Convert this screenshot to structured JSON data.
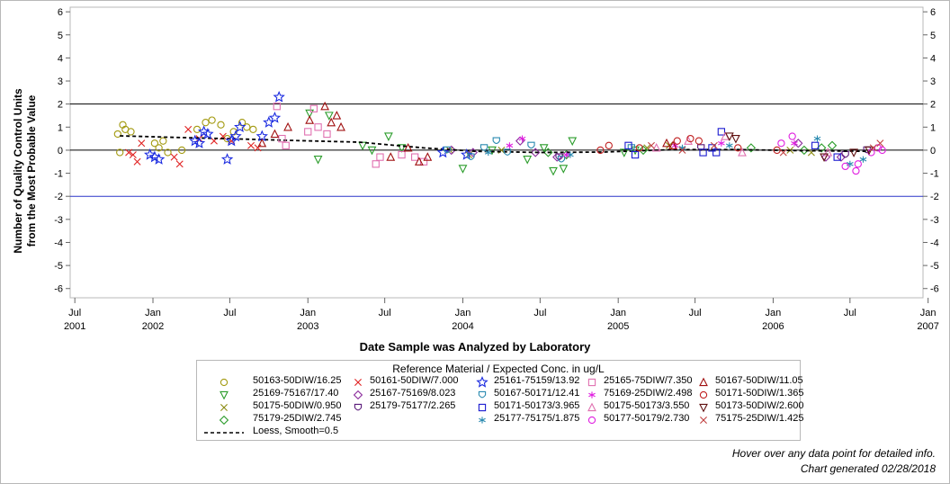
{
  "footnotes": {
    "hover": "Hover over any data point for detailed info.",
    "generated": "Chart generated 02/28/2018"
  },
  "chart_data": {
    "type": "scatter",
    "title": "",
    "ylabel_line1": "Number of Quality Control Units",
    "ylabel_line2": "from the Most Probable Value",
    "xlabel": "Date Sample was Analyzed by Laboratory",
    "ylim": [
      -6.4,
      6.2
    ],
    "xlim": [
      "2001-06-20",
      "2006-12-20"
    ],
    "yticks": [
      6,
      5,
      4,
      3,
      2,
      1,
      0,
      -1,
      -2,
      -3,
      -4,
      -5,
      -6
    ],
    "xticks": [
      {
        "date": "2001-07-01",
        "label1": "Jul",
        "label2": "2001"
      },
      {
        "date": "2002-01-01",
        "label1": "Jan",
        "label2": "2002"
      },
      {
        "date": "2002-07-01",
        "label1": "Jul",
        "label2": ""
      },
      {
        "date": "2003-01-01",
        "label1": "Jan",
        "label2": "2003"
      },
      {
        "date": "2003-07-01",
        "label1": "Jul",
        "label2": ""
      },
      {
        "date": "2004-01-01",
        "label1": "Jan",
        "label2": "2004"
      },
      {
        "date": "2004-07-01",
        "label1": "Jul",
        "label2": ""
      },
      {
        "date": "2005-01-01",
        "label1": "Jan",
        "label2": "2005"
      },
      {
        "date": "2005-07-01",
        "label1": "Jul",
        "label2": ""
      },
      {
        "date": "2006-01-01",
        "label1": "Jan",
        "label2": "2006"
      },
      {
        "date": "2006-07-01",
        "label1": "Jul",
        "label2": ""
      },
      {
        "date": "2007-01-01",
        "label1": "Jan",
        "label2": "2007"
      }
    ],
    "reference_lines": [
      {
        "y": 2,
        "color": "#000000"
      },
      {
        "y": 0,
        "color": "#000000"
      },
      {
        "y": -2,
        "color": "#2a35c8"
      }
    ],
    "legend": {
      "title": "Reference Material / Expected Conc. in ug/L",
      "placement": "bottom-center"
    },
    "series": [
      {
        "name": "50163-50DIW/16.25",
        "marker": "circle",
        "color": "#a39a10",
        "points": [
          [
            "2001-10-10",
            0.7
          ],
          [
            "2001-10-15",
            -0.1
          ],
          [
            "2001-10-22",
            1.1
          ],
          [
            "2001-10-28",
            0.9
          ],
          [
            "2001-11-10",
            0.8
          ],
          [
            "2002-01-05",
            0.3
          ],
          [
            "2002-01-15",
            0.1
          ],
          [
            "2002-01-25",
            0.4
          ],
          [
            "2002-02-05",
            -0.1
          ],
          [
            "2002-03-10",
            0.0
          ],
          [
            "2002-04-15",
            0.9
          ],
          [
            "2002-05-05",
            1.2
          ],
          [
            "2002-05-20",
            1.3
          ],
          [
            "2002-06-10",
            1.1
          ],
          [
            "2002-06-25",
            0.5
          ],
          [
            "2002-07-10",
            0.8
          ],
          [
            "2002-07-30",
            1.2
          ],
          [
            "2002-08-10",
            1.0
          ],
          [
            "2002-08-25",
            0.9
          ]
        ]
      },
      {
        "name": "25169-75167/17.40",
        "marker": "triangle-down",
        "color": "#2a9c2a",
        "points": [
          [
            "2003-01-05",
            1.6
          ],
          [
            "2003-01-25",
            -0.4
          ],
          [
            "2003-02-20",
            1.5
          ],
          [
            "2003-05-10",
            0.2
          ],
          [
            "2003-06-01",
            0.0
          ],
          [
            "2003-07-10",
            0.6
          ],
          [
            "2003-08-10",
            0.1
          ],
          [
            "2004-01-01",
            -0.8
          ],
          [
            "2004-03-10",
            0.0
          ],
          [
            "2004-06-01",
            -0.4
          ],
          [
            "2004-07-10",
            0.1
          ],
          [
            "2004-08-01",
            -0.9
          ],
          [
            "2004-08-25",
            -0.8
          ],
          [
            "2004-09-15",
            0.4
          ],
          [
            "2005-01-15",
            -0.1
          ],
          [
            "2005-02-10",
            0.0
          ]
        ]
      },
      {
        "name": "50175-50DIW/0.950",
        "marker": "x",
        "color": "#8a8a10",
        "points": [
          [
            "2003-12-01",
            0.0
          ],
          [
            "2004-01-15",
            -0.2
          ],
          [
            "2004-04-01",
            0.0
          ],
          [
            "2005-03-10",
            0.1
          ],
          [
            "2005-05-01",
            0.2
          ],
          [
            "2006-02-10",
            0.0
          ],
          [
            "2006-04-01",
            -0.1
          ]
        ]
      },
      {
        "name": "75179-25DIW/2.745",
        "marker": "diamond",
        "color": "#2a9c2a",
        "points": [
          [
            "2004-07-20",
            -0.1
          ],
          [
            "2004-09-01",
            -0.2
          ],
          [
            "2005-03-01",
            0.0
          ],
          [
            "2005-11-10",
            0.1
          ],
          [
            "2006-03-15",
            0.0
          ],
          [
            "2006-04-25",
            0.1
          ],
          [
            "2006-05-20",
            0.2
          ]
        ]
      },
      {
        "name": "50161-50DIW/7.000",
        "marker": "x",
        "color": "#e02020",
        "points": [
          [
            "2001-11-05",
            -0.1
          ],
          [
            "2001-11-15",
            -0.2
          ],
          [
            "2001-11-25",
            -0.5
          ],
          [
            "2001-12-05",
            0.3
          ],
          [
            "2002-02-20",
            -0.3
          ],
          [
            "2002-03-05",
            -0.6
          ],
          [
            "2002-03-25",
            0.9
          ],
          [
            "2002-04-20",
            0.5
          ],
          [
            "2002-05-25",
            0.4
          ],
          [
            "2002-06-15",
            0.6
          ],
          [
            "2002-07-05",
            0.4
          ],
          [
            "2002-08-20",
            0.2
          ],
          [
            "2002-09-05",
            0.1
          ]
        ]
      },
      {
        "name": "25167-75169/8.023",
        "marker": "diamond",
        "color": "#8a2a9c",
        "points": [
          [
            "2003-12-05",
            0.0
          ],
          [
            "2004-01-25",
            -0.1
          ],
          [
            "2004-05-15",
            0.4
          ],
          [
            "2004-06-20",
            -0.1
          ],
          [
            "2004-08-10",
            -0.3
          ],
          [
            "2006-03-01",
            0.3
          ],
          [
            "2006-05-05",
            -0.3
          ],
          [
            "2006-06-10",
            -0.3
          ]
        ]
      },
      {
        "name": "25179-75177/2.265",
        "marker": "shield",
        "color": "#5a1a7a",
        "points": [
          [
            "2004-08-15",
            -0.3
          ],
          [
            "2005-07-15",
            0.1
          ],
          [
            "2006-06-20",
            -0.2
          ],
          [
            "2006-08-10",
            0.0
          ]
        ]
      },
      {
        "name": "Loess, Smooth=0.5",
        "marker": "none",
        "line": "dashed",
        "color": "#000000",
        "points": [
          [
            "2001-10-15",
            0.62
          ],
          [
            "2002-03-01",
            0.55
          ],
          [
            "2002-08-01",
            0.48
          ],
          [
            "2002-12-01",
            0.42
          ],
          [
            "2003-05-01",
            0.35
          ],
          [
            "2003-10-01",
            0.1
          ],
          [
            "2004-02-01",
            -0.05
          ],
          [
            "2004-07-01",
            -0.1
          ],
          [
            "2004-12-01",
            -0.08
          ],
          [
            "2005-05-01",
            0.02
          ],
          [
            "2005-10-01",
            0.03
          ],
          [
            "2006-03-01",
            -0.02
          ],
          [
            "2006-08-15",
            -0.05
          ]
        ]
      },
      {
        "name": "25161-75159/13.92",
        "marker": "star",
        "color": "#1a2ae0",
        "points": [
          [
            "2001-12-25",
            -0.2
          ],
          [
            "2002-01-05",
            -0.3
          ],
          [
            "2002-01-15",
            -0.4
          ],
          [
            "2002-04-10",
            0.4
          ],
          [
            "2002-04-20",
            0.3
          ],
          [
            "2002-05-01",
            0.8
          ],
          [
            "2002-05-10",
            0.7
          ],
          [
            "2002-06-25",
            -0.4
          ],
          [
            "2002-07-05",
            0.4
          ],
          [
            "2002-07-15",
            0.6
          ],
          [
            "2002-07-25",
            1.0
          ],
          [
            "2002-09-15",
            0.6
          ],
          [
            "2002-10-01",
            1.2
          ],
          [
            "2002-10-15",
            1.4
          ],
          [
            "2002-10-25",
            2.3
          ],
          [
            "2003-11-15",
            -0.1
          ],
          [
            "2004-01-10",
            -0.2
          ]
        ]
      },
      {
        "name": "50167-50171/12.41",
        "marker": "shield",
        "color": "#2a8ab0",
        "points": [
          [
            "2003-11-25",
            0.0
          ],
          [
            "2004-01-20",
            -0.3
          ],
          [
            "2004-02-20",
            0.1
          ],
          [
            "2004-03-20",
            0.4
          ],
          [
            "2004-04-15",
            -0.1
          ],
          [
            "2004-06-10",
            0.2
          ],
          [
            "2004-08-20",
            -0.4
          ],
          [
            "2005-02-01",
            0.1
          ]
        ]
      },
      {
        "name": "50171-50173/3.965",
        "marker": "square",
        "color": "#1a1ad0",
        "points": [
          [
            "2005-01-25",
            0.2
          ],
          [
            "2005-02-10",
            -0.2
          ],
          [
            "2005-07-20",
            -0.1
          ],
          [
            "2005-08-10",
            0.1
          ],
          [
            "2005-08-20",
            -0.1
          ],
          [
            "2005-09-01",
            0.8
          ],
          [
            "2006-04-10",
            0.2
          ],
          [
            "2006-06-01",
            -0.3
          ]
        ]
      },
      {
        "name": "25177-75175/1.875",
        "marker": "asterisk",
        "color": "#2a8ab0",
        "points": [
          [
            "2004-03-01",
            -0.1
          ],
          [
            "2004-09-10",
            -0.2
          ],
          [
            "2005-06-01",
            0.1
          ],
          [
            "2005-09-20",
            0.2
          ],
          [
            "2006-04-15",
            0.5
          ],
          [
            "2006-07-01",
            -0.6
          ],
          [
            "2006-08-01",
            -0.4
          ]
        ]
      },
      {
        "name": "25165-75DIW/7.350",
        "marker": "square",
        "color": "#e070b0",
        "points": [
          [
            "2002-10-20",
            1.9
          ],
          [
            "2002-11-01",
            0.5
          ],
          [
            "2002-11-10",
            0.2
          ],
          [
            "2003-01-01",
            0.8
          ],
          [
            "2003-01-15",
            1.8
          ],
          [
            "2003-01-25",
            1.0
          ],
          [
            "2003-02-15",
            0.7
          ],
          [
            "2003-06-10",
            -0.6
          ],
          [
            "2003-06-20",
            -0.3
          ],
          [
            "2003-08-10",
            -0.2
          ],
          [
            "2003-09-10",
            -0.3
          ],
          [
            "2003-10-01",
            -0.5
          ]
        ]
      },
      {
        "name": "75169-25DIW/2.498",
        "marker": "asterisk",
        "color": "#e020e0",
        "points": [
          [
            "2004-04-20",
            0.2
          ],
          [
            "2004-05-20",
            0.5
          ],
          [
            "2004-09-01",
            -0.2
          ],
          [
            "2005-05-15",
            0.2
          ],
          [
            "2005-09-01",
            0.3
          ],
          [
            "2006-02-20",
            0.3
          ]
        ]
      },
      {
        "name": "50175-50173/3.550",
        "marker": "triangle",
        "color": "#e070b0",
        "points": [
          [
            "2005-04-01",
            0.1
          ],
          [
            "2005-06-15",
            0.4
          ],
          [
            "2005-09-10",
            0.6
          ],
          [
            "2005-10-20",
            -0.1
          ],
          [
            "2006-05-10",
            -0.1
          ]
        ]
      },
      {
        "name": "50177-50179/2.730",
        "marker": "circle",
        "color": "#e020e0",
        "points": [
          [
            "2006-01-20",
            0.3
          ],
          [
            "2006-02-15",
            0.6
          ],
          [
            "2006-06-20",
            -0.7
          ],
          [
            "2006-07-15",
            -0.9
          ],
          [
            "2006-07-20",
            -0.6
          ],
          [
            "2006-08-20",
            -0.1
          ],
          [
            "2006-09-05",
            0.1
          ],
          [
            "2006-09-15",
            0.0
          ]
        ]
      },
      {
        "name": "50167-50DIW/11.05",
        "marker": "triangle",
        "color": "#a01010",
        "points": [
          [
            "2002-09-15",
            0.3
          ],
          [
            "2002-10-15",
            0.7
          ],
          [
            "2002-11-15",
            1.0
          ],
          [
            "2003-01-05",
            1.3
          ],
          [
            "2003-02-10",
            1.9
          ],
          [
            "2003-02-25",
            1.2
          ],
          [
            "2003-03-10",
            1.5
          ],
          [
            "2003-03-20",
            1.0
          ],
          [
            "2003-07-15",
            -0.3
          ],
          [
            "2003-08-25",
            0.1
          ],
          [
            "2003-09-20",
            -0.5
          ],
          [
            "2003-10-10",
            -0.3
          ],
          [
            "2005-04-25",
            0.3
          ],
          [
            "2005-05-10",
            0.2
          ]
        ]
      },
      {
        "name": "50171-50DIW/1.365",
        "marker": "circle",
        "color": "#c02020",
        "points": [
          [
            "2004-11-20",
            0.0
          ],
          [
            "2004-12-10",
            0.2
          ],
          [
            "2005-02-20",
            0.1
          ],
          [
            "2005-05-20",
            0.4
          ],
          [
            "2005-06-20",
            0.5
          ],
          [
            "2005-07-10",
            0.4
          ],
          [
            "2005-10-10",
            0.1
          ],
          [
            "2006-01-10",
            0.0
          ]
        ]
      },
      {
        "name": "50173-50DIW/2.600",
        "marker": "triangle-down",
        "color": "#601010",
        "points": [
          [
            "2005-09-20",
            0.6
          ],
          [
            "2005-10-05",
            0.5
          ],
          [
            "2006-05-01",
            -0.3
          ],
          [
            "2006-07-10",
            -0.1
          ],
          [
            "2006-08-15",
            0.0
          ]
        ]
      },
      {
        "name": "75175-25DIW/1.425",
        "marker": "x",
        "color": "#c04040",
        "points": [
          [
            "2005-03-20",
            0.2
          ],
          [
            "2005-06-01",
            0.0
          ],
          [
            "2005-08-15",
            0.2
          ],
          [
            "2006-01-25",
            -0.1
          ],
          [
            "2006-08-25",
            0.1
          ],
          [
            "2006-09-10",
            0.3
          ]
        ]
      }
    ]
  }
}
